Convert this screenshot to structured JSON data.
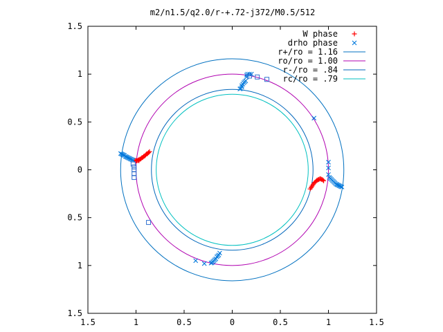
{
  "chart_data": {
    "type": "scatter",
    "title": "m2/n1.5/q2.0/r-+.72-j372/M0.5/512",
    "xlim": [
      -1.5,
      1.5
    ],
    "ylim": [
      -1.5,
      1.5
    ],
    "x_tick_values": [
      -1.5,
      -1,
      -0.5,
      0,
      0.5,
      1,
      1.5
    ],
    "x_tick_labels": [
      "1.5",
      "1",
      "0.5",
      "0",
      "0.5",
      "1",
      "1.5"
    ],
    "y_tick_values": [
      1.5,
      1,
      0.5,
      0,
      -0.5,
      -1,
      -1.5
    ],
    "y_tick_labels": [
      "1.5",
      "1",
      "0.5",
      "0",
      "0.5",
      "1",
      "1.5"
    ],
    "grid": false,
    "legend_position": "top-right",
    "series": [
      {
        "name": "W phase",
        "marker": "plus",
        "color": "#ff0000",
        "points": [
          [
            -0.86,
            0.19
          ],
          [
            -0.87,
            0.18
          ],
          [
            -0.88,
            0.17
          ],
          [
            -0.89,
            0.165
          ],
          [
            -0.9,
            0.155
          ],
          [
            -0.91,
            0.145
          ],
          [
            -0.92,
            0.14
          ],
          [
            -0.93,
            0.13
          ],
          [
            -0.94,
            0.125
          ],
          [
            -0.95,
            0.115
          ],
          [
            -0.96,
            0.11
          ],
          [
            -0.97,
            0.105
          ],
          [
            -0.98,
            0.1
          ],
          [
            -0.99,
            0.095
          ],
          [
            -1.0,
            0.095
          ],
          [
            -1.01,
            0.1
          ],
          [
            -0.97,
            0.095
          ],
          [
            0.81,
            -0.2
          ],
          [
            0.82,
            -0.185
          ],
          [
            0.83,
            -0.17
          ],
          [
            0.84,
            -0.155
          ],
          [
            0.85,
            -0.14
          ],
          [
            0.86,
            -0.13
          ],
          [
            0.87,
            -0.12
          ],
          [
            0.88,
            -0.11
          ],
          [
            0.89,
            -0.105
          ],
          [
            0.9,
            -0.1
          ],
          [
            0.91,
            -0.095
          ],
          [
            0.92,
            -0.095
          ],
          [
            0.93,
            -0.1
          ],
          [
            0.94,
            -0.105
          ],
          [
            0.95,
            -0.115
          ]
        ]
      },
      {
        "name": "drho phase",
        "marker": "cross",
        "color": "#0078dc",
        "points": [
          [
            0.14,
            0.93
          ],
          [
            0.13,
            0.92
          ],
          [
            0.12,
            0.91
          ],
          [
            0.11,
            0.895
          ],
          [
            0.1,
            0.88
          ],
          [
            0.1,
            0.865
          ],
          [
            0.09,
            0.85
          ],
          [
            0.08,
            0.845
          ],
          [
            0.15,
            0.97
          ],
          [
            0.15,
            0.99
          ],
          [
            0.16,
            1.0
          ],
          [
            0.18,
            1.0
          ],
          [
            0.2,
            1.0
          ],
          [
            -1.16,
            0.17
          ],
          [
            -1.15,
            0.165
          ],
          [
            -1.14,
            0.16
          ],
          [
            -1.13,
            0.155
          ],
          [
            -1.12,
            0.15
          ],
          [
            -1.11,
            0.14
          ],
          [
            -1.1,
            0.135
          ],
          [
            -1.09,
            0.13
          ],
          [
            -1.08,
            0.125
          ],
          [
            -1.07,
            0.12
          ],
          [
            -1.06,
            0.115
          ],
          [
            -1.05,
            0.11
          ],
          [
            -1.04,
            0.105
          ],
          [
            -1.03,
            0.1
          ],
          [
            1.14,
            -0.18
          ],
          [
            1.13,
            -0.175
          ],
          [
            1.12,
            -0.17
          ],
          [
            1.11,
            -0.165
          ],
          [
            1.1,
            -0.16
          ],
          [
            1.09,
            -0.155
          ],
          [
            1.08,
            -0.15
          ],
          [
            1.07,
            -0.14
          ],
          [
            1.06,
            -0.13
          ],
          [
            1.05,
            -0.12
          ],
          [
            1.04,
            -0.11
          ],
          [
            1.03,
            -0.1
          ],
          [
            1.02,
            -0.09
          ],
          [
            1.01,
            -0.08
          ],
          [
            1.0,
            -0.05
          ],
          [
            1.0,
            0.02
          ],
          [
            1.0,
            0.08
          ],
          [
            0.85,
            0.54
          ],
          [
            -0.13,
            -0.87
          ],
          [
            -0.14,
            -0.89
          ],
          [
            -0.15,
            -0.9
          ],
          [
            -0.16,
            -0.91
          ],
          [
            -0.17,
            -0.93
          ],
          [
            -0.18,
            -0.94
          ],
          [
            -0.19,
            -0.95
          ],
          [
            -0.2,
            -0.96
          ],
          [
            -0.21,
            -0.97
          ],
          [
            -0.22,
            -0.975
          ],
          [
            -0.29,
            -0.98
          ],
          [
            -0.38,
            -0.95
          ]
        ]
      },
      {
        "name": "r+/ro = 1.16",
        "type": "circle",
        "radius": 1.16,
        "color": "#0070c0"
      },
      {
        "name": "ro/ro = 1.00",
        "type": "circle",
        "radius": 1.0,
        "color": "#b000b0"
      },
      {
        "name": "r-/ro = .84",
        "type": "circle",
        "radius": 0.84,
        "color": "#0066bb"
      },
      {
        "name": "rc/ro = .79",
        "type": "circle",
        "radius": 0.79,
        "color": "#00c0c0"
      },
      {
        "marker": "square",
        "color": "#3070d0",
        "points": [
          [
            0.18,
            0.98
          ],
          [
            0.26,
            0.97
          ],
          [
            0.36,
            0.945
          ],
          [
            -1.03,
            0.06
          ],
          [
            -1.02,
            0.03
          ],
          [
            -1.02,
            0.0
          ],
          [
            -1.02,
            -0.04
          ],
          [
            -1.02,
            -0.08
          ],
          [
            -0.87,
            -0.55
          ]
        ]
      }
    ]
  }
}
